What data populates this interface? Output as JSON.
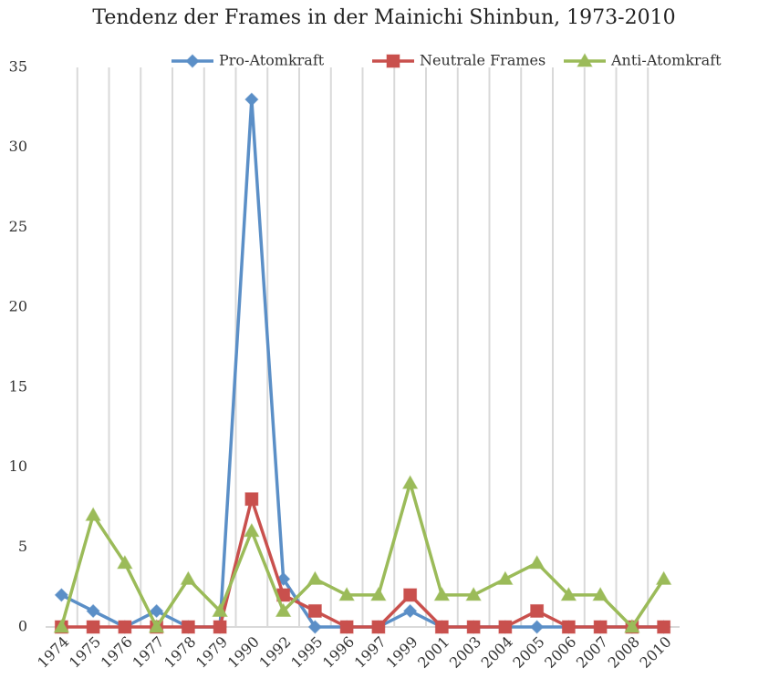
{
  "chart_data": {
    "type": "line",
    "title": "Tendenz der Frames in der Mainichi Shinbun, 1973-2010",
    "categories": [
      "1974",
      "1975",
      "1976",
      "1977",
      "1978",
      "1979",
      "1990",
      "1992",
      "1995",
      "1996",
      "1997",
      "1999",
      "2001",
      "2003",
      "2004",
      "2005",
      "2006",
      "2007",
      "2008",
      "2010"
    ],
    "series": [
      {
        "name": "Pro-Atomkraft",
        "color": "#5b8fc7",
        "marker": "diamond",
        "values": [
          2,
          1,
          0,
          1,
          0,
          0,
          33,
          3,
          0,
          0,
          0,
          1,
          0,
          0,
          0,
          0,
          0,
          0,
          0,
          0
        ]
      },
      {
        "name": "Neutrale Frames",
        "color": "#c9504d",
        "marker": "square",
        "values": [
          0,
          0,
          0,
          0,
          0,
          0,
          8,
          2,
          1,
          0,
          0,
          2,
          0,
          0,
          0,
          1,
          0,
          0,
          0,
          0
        ]
      },
      {
        "name": "Anti-Atomkraft",
        "color": "#9bbb59",
        "marker": "triangle",
        "values": [
          0,
          7,
          4,
          0,
          3,
          1,
          6,
          1,
          3,
          2,
          2,
          9,
          2,
          2,
          3,
          4,
          2,
          2,
          0,
          3
        ]
      }
    ],
    "ylim": [
      0,
      35
    ],
    "yticks": [
      0,
      5,
      10,
      15,
      20,
      25,
      30,
      35
    ],
    "legend": "top"
  }
}
